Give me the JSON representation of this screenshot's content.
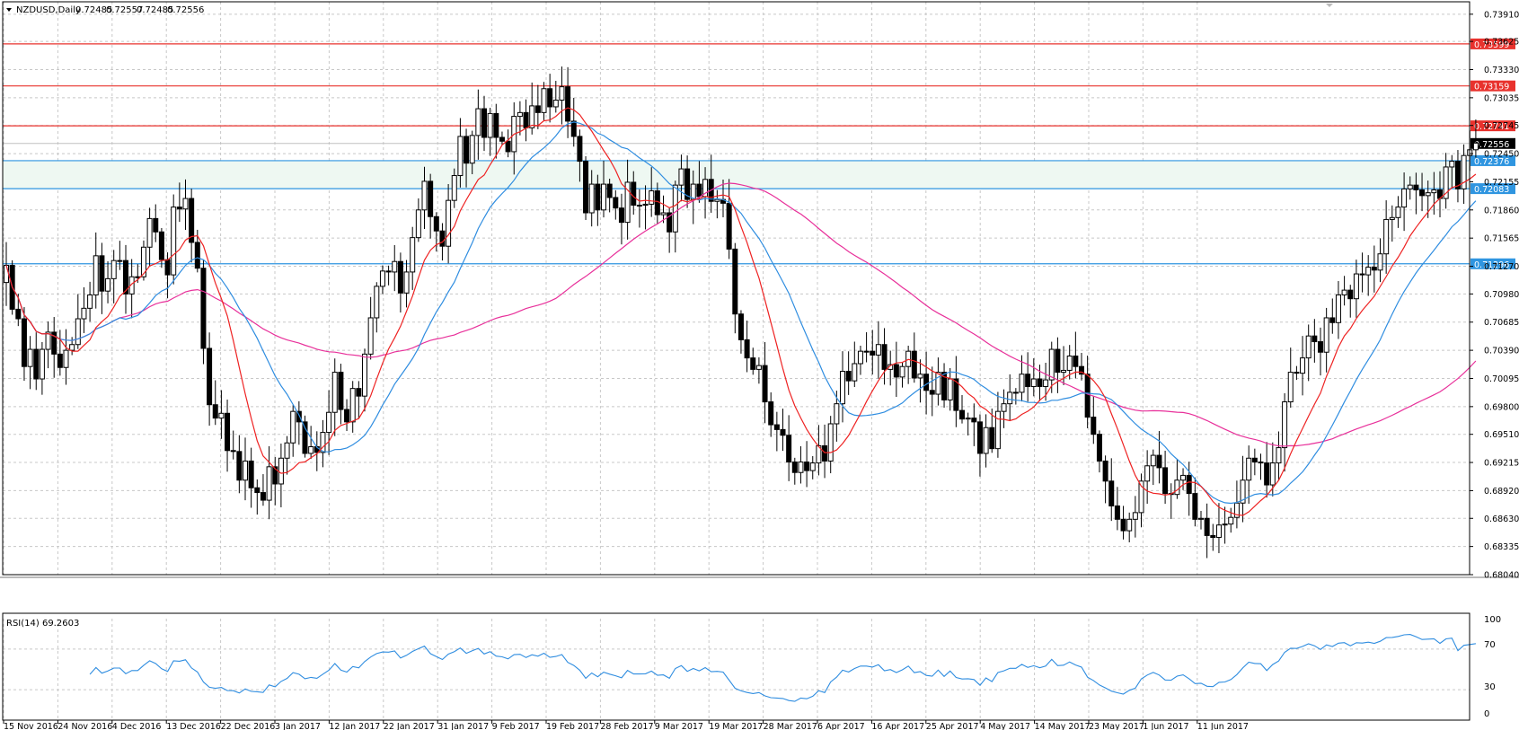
{
  "chart_data": {
    "type": "candlestick",
    "header": {
      "symbol": "NZDUSD,Daily",
      "ohlc": [
        "0.72485",
        "0.72557",
        "0.72485",
        "0.72556"
      ]
    },
    "price_axis": {
      "ylim": [
        0.6804,
        0.7404
      ],
      "ticks": [
        "0.73910",
        "0.73625",
        "0.73330",
        "0.73035",
        "0.72745",
        "0.72450",
        "0.72155",
        "0.71860",
        "0.71565",
        "0.71270",
        "0.70980",
        "0.70685",
        "0.70390",
        "0.70095",
        "0.69800",
        "0.69510",
        "0.69215",
        "0.68920",
        "0.68630",
        "0.68335",
        "0.68040"
      ]
    },
    "date_axis": {
      "labels": [
        "15 Nov 2016",
        "24 Nov 2016",
        "4 Dec 2016",
        "13 Dec 2016",
        "22 Dec 2016",
        "3 Jan 2017",
        "12 Jan 2017",
        "22 Jan 2017",
        "31 Jan 2017",
        "9 Feb 2017",
        "19 Feb 2017",
        "28 Feb 2017",
        "9 Mar 2017",
        "19 Mar 2017",
        "28 Mar 2017",
        "6 Apr 2017",
        "16 Apr 2017",
        "25 Apr 2017",
        "4 May 2017",
        "14 May 2017",
        "23 May 2017",
        "1 Jun 2017",
        "11 Jun 2017"
      ]
    },
    "levels": [
      {
        "label": "0.73599",
        "value": 0.73599,
        "color": "#e8322d"
      },
      {
        "label": "0.73159",
        "value": 0.73159,
        "color": "#e8322d"
      },
      {
        "label": "0.72741",
        "value": 0.72741,
        "color": "#e8322d"
      },
      {
        "label": "0.72376",
        "value": 0.72376,
        "color": "#2f95e0"
      },
      {
        "label": "0.72083",
        "value": 0.72083,
        "color": "#2f95e0"
      },
      {
        "label": "0.71296",
        "value": 0.71296,
        "color": "#2f95e0"
      }
    ],
    "current_price": {
      "label": "0.72556",
      "value": 0.72556
    },
    "zone": {
      "low": 0.72083,
      "high": 0.72376,
      "color": "#eef8f2"
    },
    "ma_colors": {
      "fast": "#ee2222",
      "mid": "#2f8de0",
      "slow": "#e8309a"
    },
    "candles": {
      "start": "2016-11-15",
      "close": [
        0.7128,
        0.7082,
        0.7072,
        0.7022,
        0.704,
        0.7009,
        0.704,
        0.7058,
        0.7035,
        0.7021,
        0.7039,
        0.7045,
        0.7072,
        0.7083,
        0.7097,
        0.7138,
        0.7101,
        0.7114,
        0.7133,
        0.7133,
        0.7098,
        0.7116,
        0.7116,
        0.7147,
        0.7177,
        0.7163,
        0.7134,
        0.7118,
        0.7189,
        0.7187,
        0.7198,
        0.7152,
        0.7125,
        0.7041,
        0.6982,
        0.6968,
        0.6973,
        0.6934,
        0.6933,
        0.6903,
        0.6923,
        0.6895,
        0.689,
        0.6882,
        0.6917,
        0.6899,
        0.6926,
        0.6942,
        0.6975,
        0.6964,
        0.6931,
        0.6938,
        0.6932,
        0.6953,
        0.6974,
        0.7016,
        0.6977,
        0.6964,
        0.6999,
        0.6991,
        0.7035,
        0.7073,
        0.7106,
        0.7122,
        0.7121,
        0.7132,
        0.7099,
        0.7121,
        0.7157,
        0.7186,
        0.7216,
        0.7179,
        0.7164,
        0.7148,
        0.7196,
        0.7222,
        0.7263,
        0.7235,
        0.7264,
        0.7292,
        0.7262,
        0.7287,
        0.7262,
        0.7258,
        0.7247,
        0.7284,
        0.7288,
        0.7272,
        0.7295,
        0.7288,
        0.7313,
        0.7294,
        0.7301,
        0.7315,
        0.7279,
        0.7263,
        0.7237,
        0.7183,
        0.7213,
        0.7186,
        0.7213,
        0.7199,
        0.7188,
        0.7173,
        0.7215,
        0.7191,
        0.7191,
        0.7192,
        0.7206,
        0.7181,
        0.7183,
        0.7163,
        0.7212,
        0.7229,
        0.7197,
        0.7213,
        0.72,
        0.7218,
        0.7195,
        0.7197,
        0.7193,
        0.7145,
        0.7077,
        0.705,
        0.7031,
        0.7019,
        0.7023,
        0.6985,
        0.6961,
        0.6956,
        0.695,
        0.6922,
        0.6911,
        0.6922,
        0.6913,
        0.6921,
        0.6939,
        0.6923,
        0.6962,
        0.6983,
        0.7017,
        0.7007,
        0.7025,
        0.7038,
        0.7038,
        0.7034,
        0.7045,
        0.7019,
        0.7024,
        0.7011,
        0.7022,
        0.7038,
        0.701,
        0.7014,
        0.6997,
        0.6993,
        0.7016,
        0.6987,
        0.7009,
        0.6976,
        0.6967,
        0.6968,
        0.6964,
        0.6931,
        0.6958,
        0.6936,
        0.6975,
        0.6983,
        0.6995,
        0.6995,
        0.7014,
        0.7001,
        0.7009,
        0.7001,
        0.7008,
        0.704,
        0.7016,
        0.7018,
        0.7033,
        0.7022,
        0.7014,
        0.6969,
        0.6951,
        0.6923,
        0.6902,
        0.6876,
        0.6862,
        0.685,
        0.6862,
        0.6869,
        0.6902,
        0.6918,
        0.6929,
        0.6916,
        0.6889,
        0.6888,
        0.6903,
        0.6908,
        0.6889,
        0.6862,
        0.6863,
        0.6845,
        0.6843,
        0.6856,
        0.6857,
        0.6864,
        0.6879,
        0.6903,
        0.6926,
        0.6922,
        0.6921,
        0.6898,
        0.6921,
        0.6937,
        0.6985,
        0.7016,
        0.7015,
        0.7031,
        0.7054,
        0.7048,
        0.7037,
        0.7073,
        0.7068,
        0.7097,
        0.7102,
        0.7093,
        0.7119,
        0.7118,
        0.7126,
        0.7123,
        0.714,
        0.7176,
        0.7178,
        0.7189,
        0.7208,
        0.7212,
        0.7207,
        0.7201,
        0.7204,
        0.7207,
        0.7198,
        0.7231,
        0.7237,
        0.7208,
        0.7243,
        0.7249,
        0.7256
      ]
    },
    "rsi": {
      "label": "RSI(14) 69.2603",
      "ylim": [
        0,
        100
      ],
      "levels": [
        "70",
        "30"
      ],
      "top_label": "100",
      "bottom_label": "0"
    }
  }
}
